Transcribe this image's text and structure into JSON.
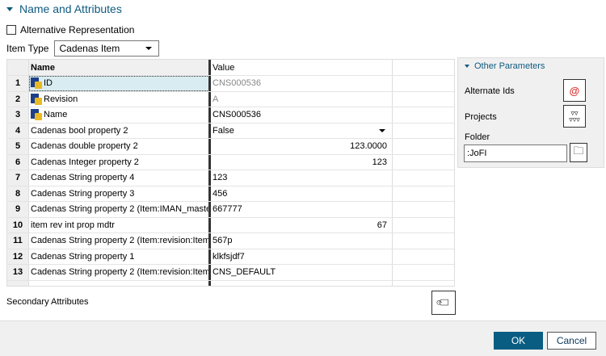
{
  "section": {
    "title": "Name and Attributes"
  },
  "alt_rep": {
    "label": "Alternative Representation",
    "checked": false
  },
  "item_type": {
    "label": "Item Type",
    "value": "Cadenas Item"
  },
  "table": {
    "headers": [
      "Name",
      "Value"
    ],
    "rows": [
      {
        "n": "1",
        "name": "ID",
        "value": "CNS000536",
        "locked": true,
        "readonly": true
      },
      {
        "n": "2",
        "name": "Revision",
        "value": "A",
        "locked": true,
        "readonly": true
      },
      {
        "n": "3",
        "name": "Name",
        "value": "CNS000536",
        "locked": true
      },
      {
        "n": "4",
        "name": "Cadenas bool property 2",
        "value": "False",
        "dropdown": true
      },
      {
        "n": "5",
        "name": "Cadenas double property 2",
        "value": "123.0000",
        "right": true
      },
      {
        "n": "6",
        "name": "Cadenas Integer property 2",
        "value": "123",
        "right": true
      },
      {
        "n": "7",
        "name": "Cadenas String property 4",
        "value": "123"
      },
      {
        "n": "8",
        "name": "Cadenas String property 3",
        "value": "456"
      },
      {
        "n": "9",
        "name": "Cadenas String property 2 (Item:IMAN_master...",
        "value": "667777"
      },
      {
        "n": "10",
        "name": "item rev int prop mdtr",
        "value": "67",
        "right": true
      },
      {
        "n": "11",
        "name": "Cadenas String property 2 (Item:revision:Item...",
        "value": "567p"
      },
      {
        "n": "12",
        "name": "Cadenas String property 1",
        "value": "klkfsjdf7"
      },
      {
        "n": "13",
        "name": "Cadenas String property 2 (Item:revision:Item...",
        "value": "CNS_DEFAULT"
      }
    ]
  },
  "other": {
    "title": "Other Parameters",
    "alternate_ids": "Alternate Ids",
    "projects": "Projects",
    "folder_label": "Folder",
    "folder_value": ":JoFI"
  },
  "secondary": {
    "label": "Secondary Attributes"
  },
  "footer": {
    "ok": "OK",
    "cancel": "Cancel"
  }
}
